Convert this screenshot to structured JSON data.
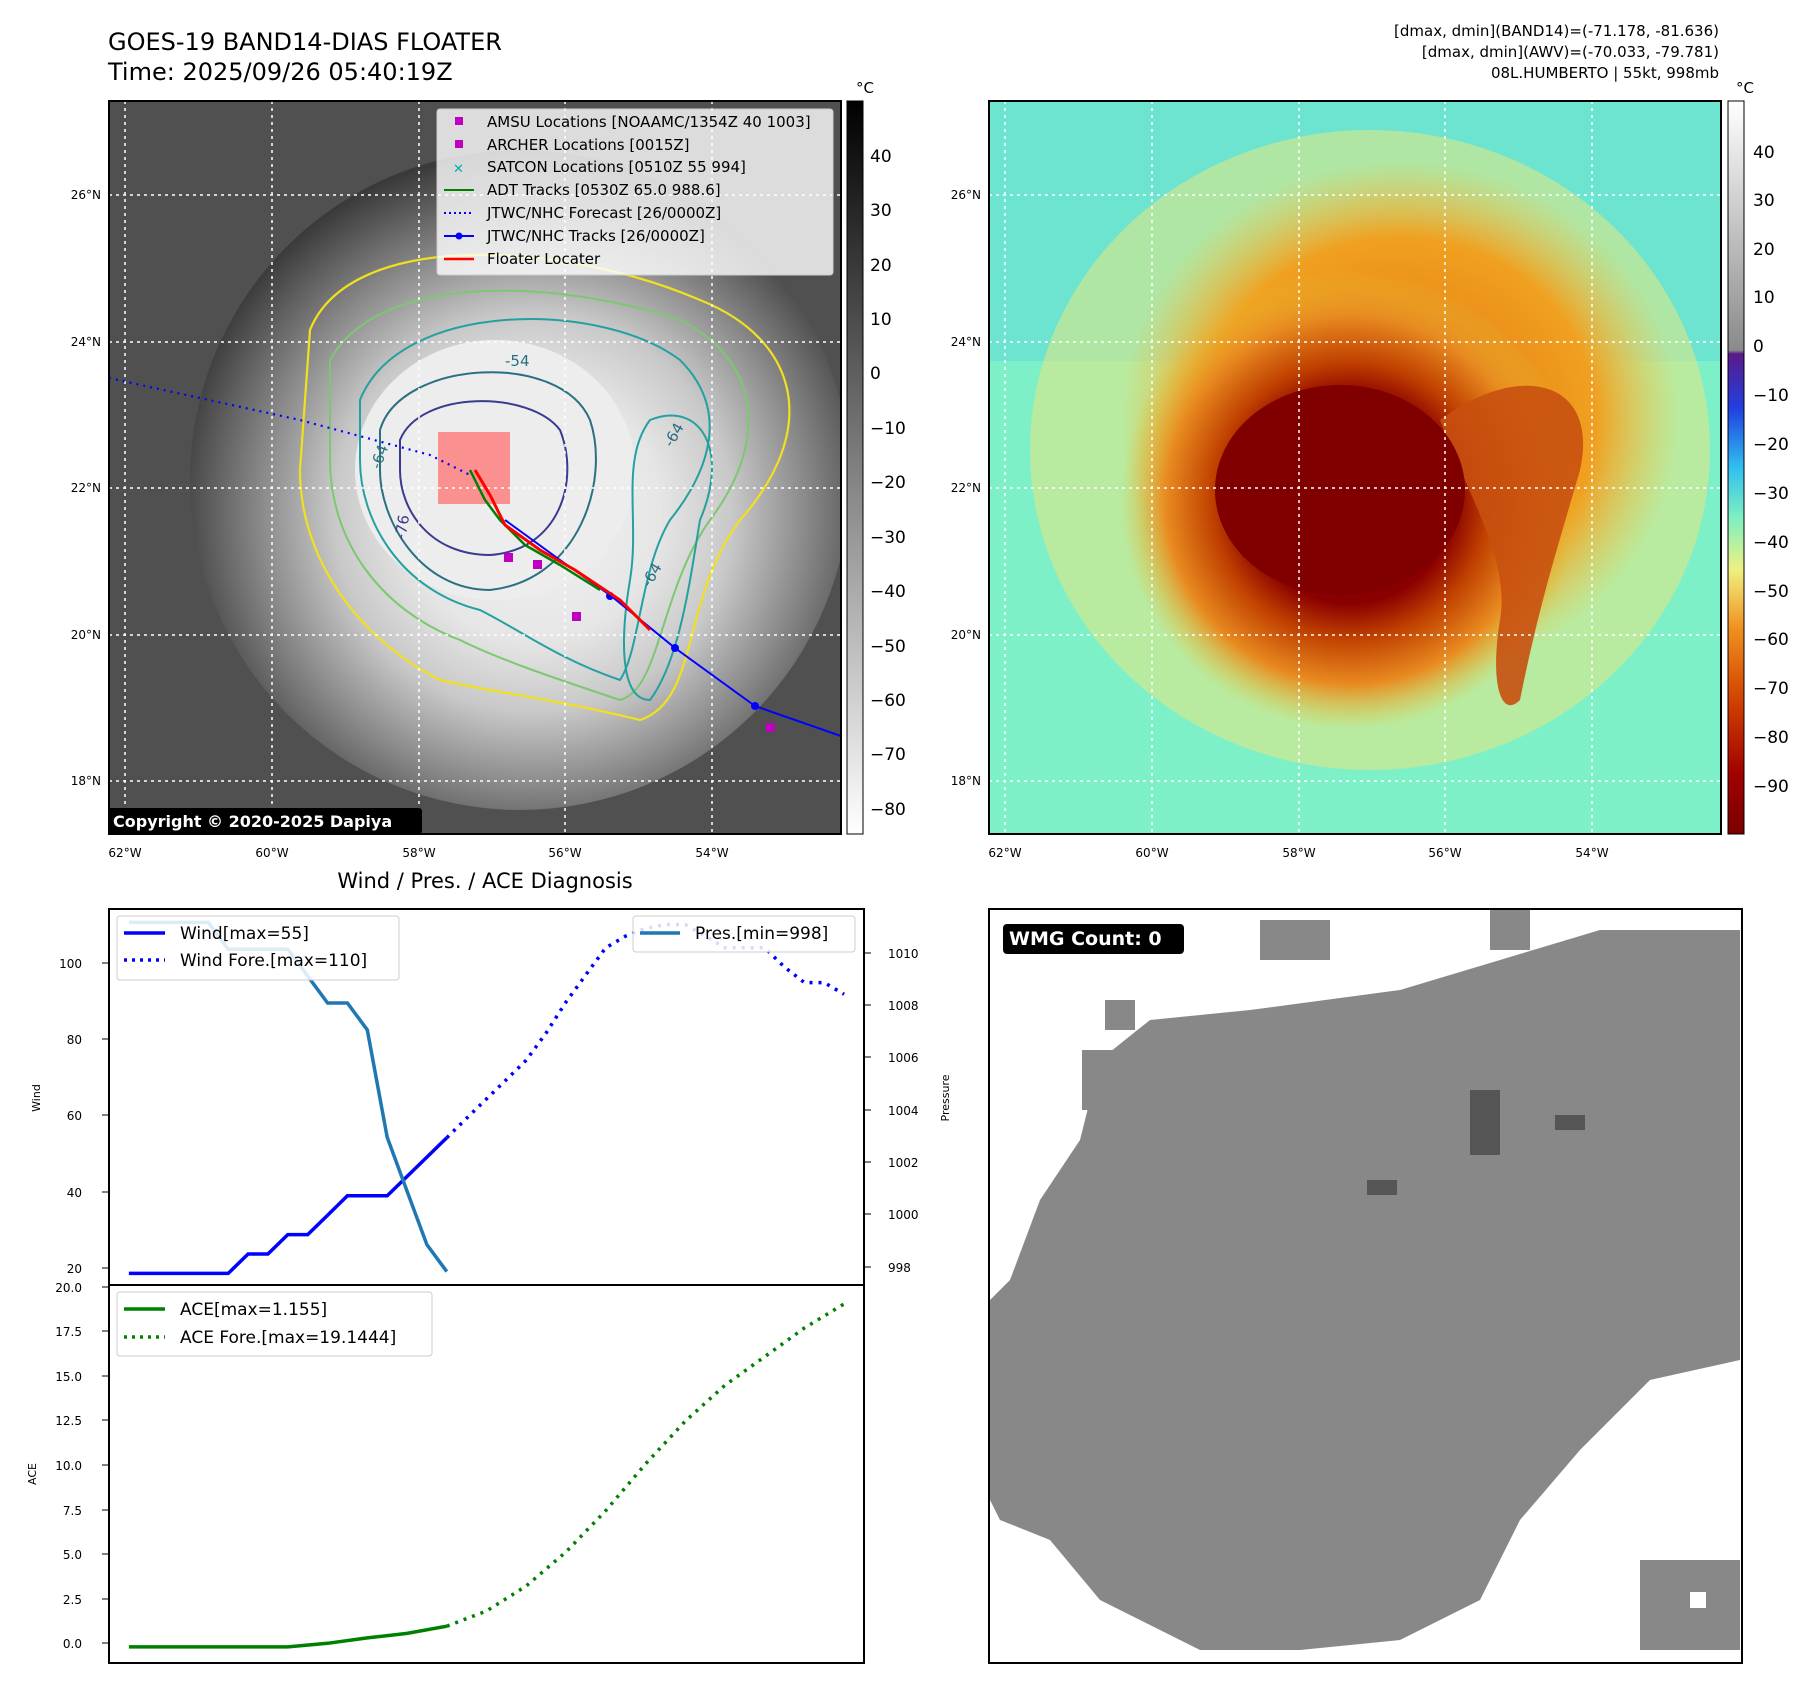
{
  "header": {
    "title_line1": "GOES-19 BAND14-DIAS FLOATER",
    "title_line2": "Time: 2025/09/26 05:40:19Z",
    "info_line1": "[dmax, dmin](BAND14)=(-71.178, -81.636)",
    "info_line2": "[dmax, dmin](AWV)=(-70.033, -79.781)",
    "info_line3": "08L.HUMBERTO | 55kt, 998mb",
    "unit_left": "°C",
    "unit_right": "°C"
  },
  "map_axes": {
    "lat_ticks": [
      "26°N",
      "24°N",
      "22°N",
      "20°N",
      "18°N"
    ],
    "lon_ticks": [
      "62°W",
      "60°W",
      "58°W",
      "56°W",
      "54°W"
    ]
  },
  "ir_panel": {
    "legend": [
      {
        "label": "AMSU Locations [NOAAMC/1354Z 40 1003]",
        "marker": "square",
        "color": "#c000c0"
      },
      {
        "label": "ARCHER Locations [0015Z]",
        "marker": "square",
        "color": "#c000c0"
      },
      {
        "label": "SATCON Locations [0510Z 55 994]",
        "marker": "x",
        "color": "#00b0b0"
      },
      {
        "label": "ADT Tracks [0530Z 65.0 988.6]",
        "marker": "line",
        "color": "#008000"
      },
      {
        "label": "JTWC/NHC Forecast [26/0000Z]",
        "marker": "dotted",
        "color": "#0000ff"
      },
      {
        "label": "JTWC/NHC Tracks [26/0000Z]",
        "marker": "line-dot",
        "color": "#0000ff"
      },
      {
        "label": "Floater Locater",
        "marker": "line",
        "color": "#ff0000"
      }
    ],
    "contour_labels": [
      "-54",
      "-64",
      "-64",
      "-64",
      "-76"
    ],
    "colorbar_ticks": [
      "40",
      "30",
      "20",
      "10",
      "0",
      "−10",
      "−20",
      "−30",
      "−40",
      "−50",
      "−60",
      "−70",
      "−80"
    ],
    "copyright": "Copyright © 2020-2025 Dapiya"
  },
  "awv_panel": {
    "colorbar_ticks": [
      "40",
      "30",
      "20",
      "10",
      "0",
      "−10",
      "−20",
      "−30",
      "−40",
      "−50",
      "−60",
      "−70",
      "−80",
      "−90"
    ]
  },
  "diag": {
    "title": "Wind / Pres. / ACE Diagnosis",
    "wind_ylabel": "Wind",
    "pres_ylabel": "Pressure",
    "ace_ylabel": "ACE",
    "wind_ticks": [
      "100",
      "80",
      "60",
      "40",
      "20"
    ],
    "pres_ticks": [
      "1010",
      "1008",
      "1006",
      "1004",
      "1002",
      "1000",
      "998"
    ],
    "ace_ticks": [
      "20.0",
      "17.5",
      "15.0",
      "12.5",
      "10.0",
      "7.5",
      "5.0",
      "2.5",
      "0.0"
    ],
    "legend_wind": "Wind[max=55]",
    "legend_wind_fore": "Wind Fore.[max=110]",
    "legend_pres": "Pres.[min=998]",
    "legend_ace": "ACE[max=1.155]",
    "legend_ace_fore": "ACE Fore.[max=19.1444]"
  },
  "wmg": {
    "label": "WMG Count: 0"
  },
  "chart_data": [
    {
      "type": "line",
      "title": "Wind / Pres. / ACE Diagnosis",
      "ylabel": "Wind",
      "ylim": [
        17,
        114
      ],
      "series": [
        {
          "name": "Wind[max=55]",
          "style": "solid",
          "color": "#0000ff",
          "x": [
            0,
            4,
            6,
            8,
            10,
            12,
            14,
            16,
            18,
            20,
            22,
            24,
            26,
            28,
            30,
            32
          ],
          "values": [
            20,
            20,
            20,
            20,
            20,
            25,
            25,
            30,
            30,
            35,
            40,
            40,
            40,
            45,
            50,
            55
          ]
        },
        {
          "name": "Wind Fore.[max=110]",
          "style": "dotted",
          "color": "#0000ff",
          "x": [
            32,
            34,
            36,
            38,
            40,
            42,
            44,
            46,
            48,
            50,
            52,
            54,
            56,
            58,
            60,
            62,
            64,
            66,
            68,
            70,
            72
          ],
          "values": [
            55,
            60,
            65,
            70,
            75,
            82,
            90,
            97,
            104,
            107,
            109,
            110,
            110,
            107,
            104,
            104,
            104,
            99,
            95,
            95,
            92
          ]
        }
      ]
    },
    {
      "type": "line",
      "ylabel": "Pressure",
      "ylim": [
        997.5,
        1011.5
      ],
      "series": [
        {
          "name": "Pres.[min=998]",
          "style": "solid",
          "color": "#1f77b4",
          "x": [
            0,
            4,
            8,
            10,
            12,
            14,
            16,
            18,
            20,
            22,
            24,
            26,
            28,
            30,
            32
          ],
          "values": [
            1011,
            1011,
            1011,
            1010,
            1010,
            1010,
            1010,
            1009,
            1008,
            1008,
            1007,
            1003,
            1001,
            999,
            998
          ]
        }
      ]
    },
    {
      "type": "line",
      "ylabel": "ACE",
      "ylim": [
        -0.9,
        20.2
      ],
      "series": [
        {
          "name": "ACE[max=1.155]",
          "style": "solid",
          "color": "#008000",
          "x": [
            0,
            8,
            16,
            20,
            24,
            28,
            32
          ],
          "values": [
            0,
            0,
            0,
            0.2,
            0.5,
            0.75,
            1.155
          ]
        },
        {
          "name": "ACE Fore.[max=19.1444]",
          "style": "dotted",
          "color": "#008000",
          "x": [
            32,
            36,
            40,
            44,
            48,
            52,
            56,
            60,
            64,
            68,
            72
          ],
          "values": [
            1.155,
            2.0,
            3.4,
            5.3,
            7.6,
            10.2,
            12.6,
            14.6,
            16.2,
            17.8,
            19.1444
          ]
        }
      ]
    }
  ]
}
